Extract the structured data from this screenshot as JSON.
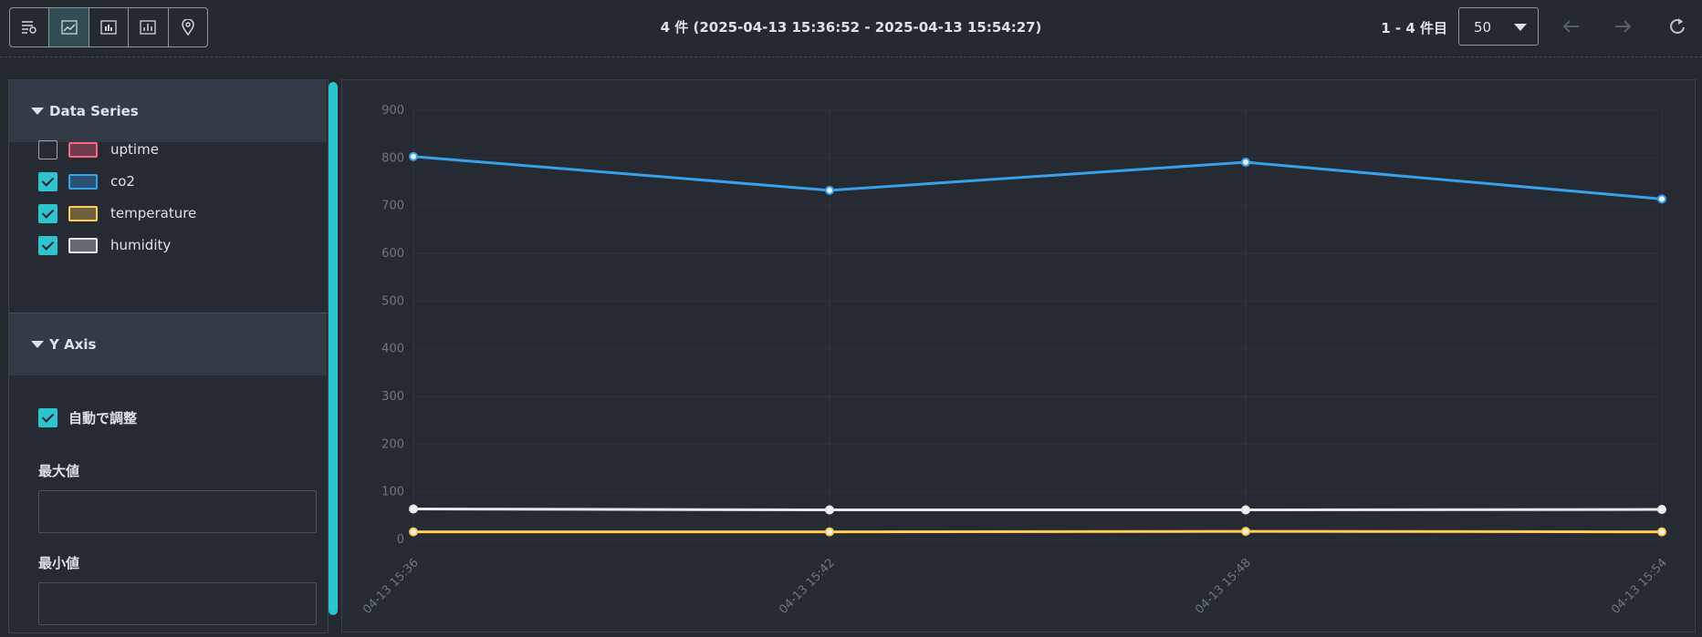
{
  "toolbar": {
    "title": "4 件 (2025-04-13 15:36:52 - 2025-04-13 15:54:27)",
    "range": "1 - 4 件目",
    "page_size": "50"
  },
  "sidebar": {
    "series_header": "Data Series",
    "y_axis": {
      "header": "Y Axis",
      "auto_label": "自動で調整",
      "auto": true,
      "max_label": "最大値",
      "min_label": "最小値"
    }
  },
  "chart_data": {
    "type": "line",
    "categories": [
      "04-13 15:36",
      "04-13 15:42",
      "04-13 15:48",
      "04-13 15:54"
    ],
    "series": [
      {
        "name": "uptime",
        "color": "#ff6384",
        "visible": false,
        "values": [
          null,
          null,
          null,
          null
        ]
      },
      {
        "name": "co2",
        "color": "#36a2eb",
        "visible": true,
        "values": [
          803,
          732,
          791,
          714
        ]
      },
      {
        "name": "temperature",
        "color": "#ffcd56",
        "visible": true,
        "values": [
          16,
          16,
          17,
          16
        ]
      },
      {
        "name": "humidity",
        "color": "#e8e8ea",
        "visible": true,
        "values": [
          64,
          62,
          62,
          63
        ]
      }
    ],
    "ylim": [
      0,
      900
    ],
    "yticks": [
      0,
      100,
      200,
      300,
      400,
      500,
      600,
      700,
      800,
      900
    ],
    "grid": true
  }
}
